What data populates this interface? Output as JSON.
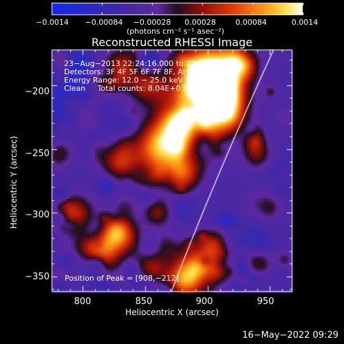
{
  "chart_data": {
    "type": "heatmap",
    "title": "Reconstructed RHESSI Image",
    "xlabel": "Heliocentric X (arcsec)",
    "ylabel": "Heliocentric Y (arcsec)",
    "xlim": [
      775,
      968
    ],
    "ylim": [
      -362,
      -172
    ],
    "x_ticks": [
      800,
      850,
      900,
      950
    ],
    "y_ticks": [
      -200,
      -250,
      -300,
      -350
    ],
    "x_tick_labels": [
      "800",
      "850",
      "900",
      "950"
    ],
    "y_tick_labels": [
      "−200",
      "−250",
      "−300",
      "−350"
    ],
    "colorbar": {
      "ticks": [
        -0.0014,
        -0.00084,
        -0.00028,
        0.00028,
        0.00084,
        0.0014
      ],
      "tick_labels": [
        "−0.0014",
        "−0.00084",
        "−0.00028",
        "0.00028",
        "0.00084",
        "0.0014"
      ],
      "units_label": "(photons cm⁻² s⁻¹ asec⁻²)",
      "range": [
        -0.0014,
        0.0014
      ]
    },
    "annotations": [
      "23−Aug−2013 22:24:16.000 to 22:26:00.000",
      "Detectors: 3F 4F 5F 6F 7F 8F, Att 0",
      "Energy Range: 12.0 − 25.0 keV",
      "Clean     Total counts: 8.04E+03"
    ],
    "peak_label": "Position of Peak = [908,−212]",
    "peak": [
      908,
      -212
    ],
    "timestamp": "16−May−2022 09:29"
  }
}
